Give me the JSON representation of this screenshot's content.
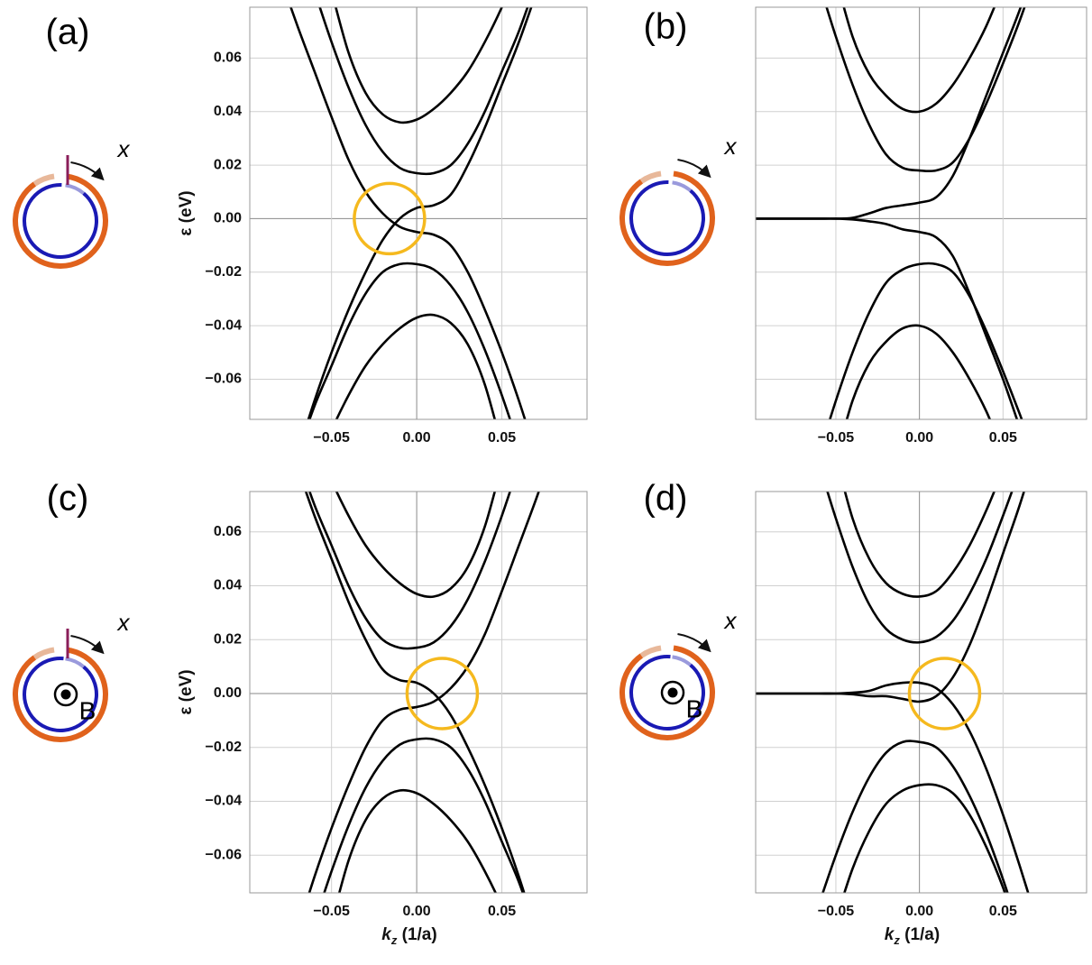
{
  "chart_data": [
    {
      "type": "line",
      "title": "(a)",
      "ylabel": "ε (eV)",
      "inset": {
        "arrow_label": "x"
      },
      "x": [
        -0.08,
        -0.07,
        -0.06,
        -0.05,
        -0.04,
        -0.03,
        -0.02,
        -0.01,
        0,
        0.01,
        0.02,
        0.03,
        0.04,
        0.05,
        0.06,
        0.07,
        0.08
      ],
      "series": [
        {
          "color": "#000000",
          "values": [
            null,
            null,
            null,
            0.085,
            0.062,
            0.047,
            0.039,
            0.036,
            0.037,
            0.041,
            0.047,
            0.055,
            0.066,
            0.079,
            0.094,
            null,
            null
          ]
        },
        {
          "color": "#000000",
          "values": [
            null,
            null,
            0.085,
            0.066,
            0.049,
            0.035,
            0.025,
            0.019,
            0.017,
            0.017,
            0.02,
            0.028,
            0.04,
            0.055,
            0.07,
            0.088,
            null
          ]
        },
        {
          "color": "#000000",
          "values": [
            0.09,
            0.072,
            0.055,
            0.038,
            0.022,
            0.01,
            0.002,
            -0.003,
            -0.005,
            -0.006,
            -0.01,
            -0.02,
            -0.034,
            -0.05,
            -0.068,
            -0.088,
            null
          ]
        },
        {
          "color": "#000000",
          "values": [
            null,
            -0.088,
            -0.068,
            -0.05,
            -0.034,
            -0.02,
            -0.008,
            0.0,
            0.004,
            0.005,
            0.009,
            0.02,
            0.034,
            0.05,
            0.066,
            0.084,
            null
          ]
        },
        {
          "color": "#000000",
          "values": [
            null,
            -0.088,
            -0.07,
            -0.055,
            -0.04,
            -0.028,
            -0.02,
            -0.017,
            -0.017,
            -0.019,
            -0.025,
            -0.035,
            -0.049,
            -0.066,
            -0.085,
            null,
            null
          ]
        },
        {
          "color": "#000000",
          "values": [
            null,
            null,
            -0.094,
            -0.079,
            -0.066,
            -0.055,
            -0.047,
            -0.041,
            -0.037,
            -0.036,
            -0.039,
            -0.047,
            -0.062,
            -0.085,
            null,
            null,
            null
          ]
        }
      ],
      "highlight": {
        "x": -0.016,
        "y": 0,
        "color": "#f5b91e"
      },
      "xlim": [
        -0.098,
        0.1
      ],
      "ylim": [
        -0.075,
        0.079
      ],
      "xticks": [
        {
          "value": -0.05,
          "label": "−0.05"
        },
        {
          "value": 0,
          "label": "0.00"
        },
        {
          "value": 0.05,
          "label": "0.05"
        }
      ],
      "yticks": [
        {
          "value": -0.06,
          "label": "−0.06"
        },
        {
          "value": -0.04,
          "label": "−0.04"
        },
        {
          "value": -0.02,
          "label": "−0.02"
        },
        {
          "value": 0,
          "label": "0.00"
        },
        {
          "value": 0.02,
          "label": "0.02"
        },
        {
          "value": 0.04,
          "label": "0.04"
        },
        {
          "value": 0.06,
          "label": "0.06"
        }
      ],
      "grid": true
    },
    {
      "type": "line",
      "title": "(b)",
      "inset": {
        "arrow_label": "x"
      },
      "x": [
        -0.1,
        -0.09,
        -0.08,
        -0.07,
        -0.06,
        -0.05,
        -0.04,
        -0.03,
        -0.02,
        -0.01,
        0,
        0.01,
        0.02,
        0.03,
        0.04,
        0.05,
        0.06,
        0.07,
        0.08
      ],
      "series": [
        {
          "color": "#000000",
          "values": [
            null,
            null,
            null,
            null,
            null,
            0.09,
            0.068,
            0.054,
            0.046,
            0.041,
            0.04,
            0.043,
            0.05,
            0.06,
            0.072,
            0.087,
            null,
            null,
            null
          ]
        },
        {
          "color": "#000000",
          "values": [
            null,
            null,
            null,
            null,
            0.088,
            0.068,
            0.05,
            0.035,
            0.024,
            0.019,
            0.018,
            0.018,
            0.021,
            0.03,
            0.043,
            0.058,
            0.074,
            0.092,
            null
          ]
        },
        {
          "color": "#000000",
          "values": [
            0,
            0,
            0,
            0,
            0,
            0,
            0.0003,
            0.002,
            0.004,
            0.005,
            0.006,
            0.008,
            0.016,
            0.03,
            0.046,
            0.062,
            0.078,
            0.096,
            null
          ]
        },
        {
          "color": "#000000",
          "values": [
            0,
            0,
            0,
            0,
            0,
            0,
            -0.0003,
            -0.001,
            -0.002,
            -0.004,
            -0.005,
            -0.007,
            -0.014,
            -0.028,
            -0.044,
            -0.06,
            -0.078,
            -0.096,
            null
          ]
        },
        {
          "color": "#000000",
          "values": [
            null,
            null,
            null,
            null,
            -0.088,
            -0.068,
            -0.05,
            -0.035,
            -0.024,
            -0.019,
            -0.017,
            -0.017,
            -0.02,
            -0.029,
            -0.042,
            -0.057,
            -0.073,
            -0.09,
            null
          ]
        },
        {
          "color": "#000000",
          "values": [
            null,
            null,
            null,
            null,
            null,
            -0.09,
            -0.068,
            -0.054,
            -0.046,
            -0.041,
            -0.04,
            -0.043,
            -0.05,
            -0.06,
            -0.072,
            -0.087,
            null,
            null,
            null
          ]
        }
      ],
      "xlim": [
        -0.098,
        0.1
      ],
      "ylim": [
        -0.075,
        0.079
      ],
      "xticks": [
        {
          "value": -0.05,
          "label": "−0.05"
        },
        {
          "value": 0,
          "label": "0.00"
        },
        {
          "value": 0.05,
          "label": "0.05"
        }
      ],
      "yticks": [
        -0.06,
        -0.04,
        -0.02,
        0,
        0.02,
        0.04,
        0.06
      ],
      "grid": true
    },
    {
      "type": "line",
      "title": "(c)",
      "ylabel": "ε (eV)",
      "xlabel": [
        "k",
        "z",
        " (1/a)"
      ],
      "inset": {
        "arrow_label": "x",
        "field_label": "B"
      },
      "x": [
        -0.08,
        -0.07,
        -0.06,
        -0.05,
        -0.04,
        -0.03,
        -0.02,
        -0.01,
        0,
        0.01,
        0.02,
        0.03,
        0.04,
        0.05,
        0.06,
        0.07,
        0.08
      ],
      "series": [
        {
          "color": "#000000",
          "values": [
            null,
            null,
            0.094,
            0.079,
            0.066,
            0.055,
            0.047,
            0.041,
            0.037,
            0.036,
            0.039,
            0.047,
            0.062,
            0.085,
            null,
            null,
            null
          ]
        },
        {
          "color": "#000000",
          "values": [
            null,
            0.088,
            0.07,
            0.055,
            0.04,
            0.028,
            0.02,
            0.017,
            0.017,
            0.019,
            0.025,
            0.035,
            0.049,
            0.066,
            0.085,
            null,
            null
          ]
        },
        {
          "color": "#000000",
          "values": [
            null,
            -0.088,
            -0.068,
            -0.05,
            -0.034,
            -0.02,
            -0.01,
            -0.006,
            -0.005,
            -0.003,
            0.002,
            0.01,
            0.022,
            0.038,
            0.055,
            0.072,
            0.09
          ]
        },
        {
          "color": "#000000",
          "values": [
            null,
            0.084,
            0.066,
            0.05,
            0.034,
            0.02,
            0.009,
            0.005,
            0.004,
            0.0,
            -0.008,
            -0.02,
            -0.034,
            -0.05,
            -0.068,
            -0.088,
            null
          ]
        },
        {
          "color": "#000000",
          "values": [
            null,
            null,
            -0.085,
            -0.066,
            -0.049,
            -0.035,
            -0.025,
            -0.019,
            -0.017,
            -0.017,
            -0.02,
            -0.028,
            -0.04,
            -0.055,
            -0.07,
            -0.088,
            null
          ]
        },
        {
          "color": "#000000",
          "values": [
            null,
            null,
            null,
            -0.085,
            -0.062,
            -0.047,
            -0.039,
            -0.036,
            -0.037,
            -0.041,
            -0.047,
            -0.055,
            -0.066,
            -0.079,
            -0.094,
            null,
            null
          ]
        }
      ],
      "highlight": {
        "x": 0.015,
        "y": 0,
        "color": "#f5b91e"
      },
      "xlim": [
        -0.098,
        0.1
      ],
      "ylim": [
        -0.074,
        0.075
      ],
      "xticks": [
        {
          "value": -0.05,
          "label": "−0.05"
        },
        {
          "value": 0,
          "label": "0.00"
        },
        {
          "value": 0.05,
          "label": "0.05"
        }
      ],
      "yticks": [
        {
          "value": -0.06,
          "label": "−0.06"
        },
        {
          "value": -0.04,
          "label": "−0.04"
        },
        {
          "value": -0.02,
          "label": "−0.02"
        },
        {
          "value": 0,
          "label": "0.00"
        },
        {
          "value": 0.02,
          "label": "0.02"
        },
        {
          "value": 0.04,
          "label": "0.04"
        },
        {
          "value": 0.06,
          "label": "0.06"
        }
      ],
      "grid": true
    },
    {
      "type": "line",
      "title": "(d)",
      "xlabel": [
        "k",
        "z",
        " (1/a)"
      ],
      "inset": {
        "arrow_label": "x",
        "field_label": "B"
      },
      "x": [
        -0.1,
        -0.09,
        -0.08,
        -0.07,
        -0.06,
        -0.05,
        -0.04,
        -0.03,
        -0.02,
        -0.01,
        0,
        0.01,
        0.02,
        0.03,
        0.04,
        0.05,
        0.06,
        0.07,
        0.08
      ],
      "series": [
        {
          "color": "#000000",
          "values": [
            null,
            null,
            null,
            null,
            null,
            0.088,
            0.065,
            0.05,
            0.041,
            0.037,
            0.036,
            0.038,
            0.045,
            0.055,
            0.068,
            0.083,
            null,
            null,
            null
          ]
        },
        {
          "color": "#000000",
          "values": [
            null,
            null,
            null,
            null,
            0.085,
            0.065,
            0.047,
            0.033,
            0.024,
            0.02,
            0.019,
            0.021,
            0.027,
            0.037,
            0.05,
            0.066,
            0.083,
            null,
            null
          ]
        },
        {
          "color": "#000000",
          "values": [
            0,
            0,
            0,
            0,
            0,
            0,
            0.0003,
            0.001,
            0.003,
            0.004,
            0.004,
            0.002,
            -0.004,
            -0.014,
            -0.028,
            -0.045,
            -0.064,
            -0.084,
            null
          ]
        },
        {
          "color": "#000000",
          "values": [
            0,
            0,
            0,
            0,
            0,
            0,
            -0.0003,
            -0.001,
            -0.001,
            -0.002,
            -0.003,
            -0.001,
            0.006,
            0.018,
            0.034,
            0.052,
            0.07,
            0.09,
            null
          ]
        },
        {
          "color": "#000000",
          "values": [
            null,
            null,
            null,
            null,
            -0.078,
            -0.06,
            -0.044,
            -0.031,
            -0.022,
            -0.018,
            -0.018,
            -0.02,
            -0.027,
            -0.038,
            -0.052,
            -0.069,
            -0.088,
            null,
            null
          ]
        },
        {
          "color": "#000000",
          "values": [
            null,
            null,
            null,
            null,
            null,
            -0.084,
            -0.065,
            -0.051,
            -0.041,
            -0.036,
            -0.034,
            -0.034,
            -0.037,
            -0.045,
            -0.057,
            -0.072,
            -0.09,
            null,
            null
          ]
        }
      ],
      "highlight": {
        "x": 0.015,
        "y": 0,
        "color": "#f5b91e"
      },
      "xlim": [
        -0.098,
        0.1
      ],
      "ylim": [
        -0.074,
        0.075
      ],
      "xticks": [
        {
          "value": -0.05,
          "label": "−0.05"
        },
        {
          "value": 0,
          "label": "0.00"
        },
        {
          "value": 0.05,
          "label": "0.05"
        }
      ],
      "yticks": [
        -0.06,
        -0.04,
        -0.02,
        0,
        0.02,
        0.04,
        0.06
      ],
      "grid": true
    }
  ]
}
